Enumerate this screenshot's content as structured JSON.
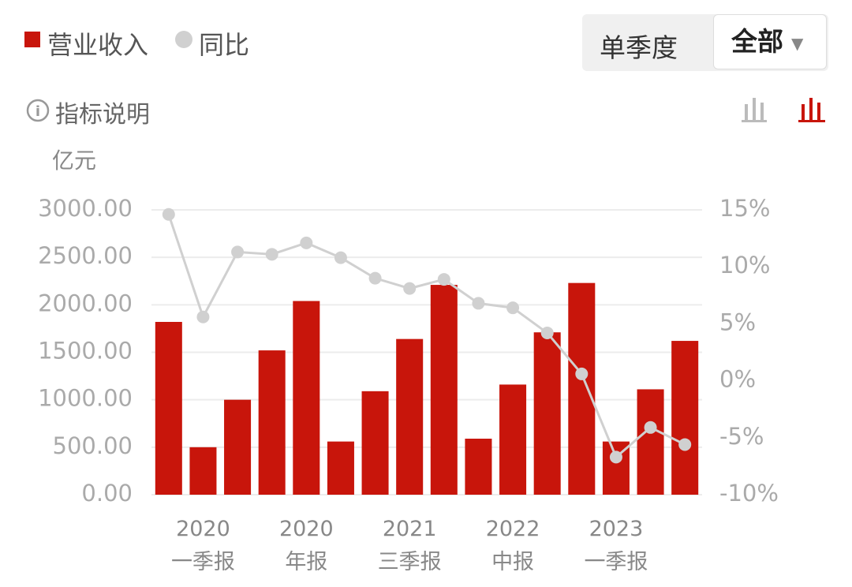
{
  "controls": {
    "period_tabs": [
      "单季度",
      "全部"
    ],
    "info": "指标说明"
  },
  "chart_data": {
    "type": "bar",
    "ylabel": "亿元",
    "categories": [
      null,
      "2020\n一季报",
      null,
      null,
      "2020\n年报",
      null,
      null,
      "2021\n三季报",
      null,
      null,
      "2022\n中报",
      null,
      null,
      "2023\n一季报",
      null,
      null
    ],
    "series": [
      {
        "name": "营业收入",
        "color": "#c8150b",
        "type": "bar",
        "values": [
          1820,
          500,
          1000,
          1520,
          2040,
          560,
          1090,
          1640,
          2210,
          590,
          1160,
          1710,
          2230,
          560,
          1110,
          1620
        ]
      },
      {
        "name": "同比",
        "color": "#d0d0d0",
        "type": "line",
        "axis": "y2",
        "values": [
          14.6,
          5.6,
          11.3,
          11.1,
          12.1,
          10.8,
          9.0,
          8.1,
          8.9,
          6.8,
          6.4,
          4.2,
          0.6,
          -6.7,
          -4.1,
          -5.6
        ]
      }
    ],
    "ylim": [
      0,
      3000
    ],
    "yticks": [
      {
        "value": 0,
        "label": "0.00"
      },
      {
        "value": 500,
        "label": "500.00"
      },
      {
        "value": 1000,
        "label": "1000.00"
      },
      {
        "value": 1500,
        "label": "1500.00"
      },
      {
        "value": 2000,
        "label": "2000.00"
      },
      {
        "value": 2500,
        "label": "2500.00"
      },
      {
        "value": 3000,
        "label": "3000.00"
      }
    ],
    "y2lim": [
      -10,
      15
    ],
    "y2ticks": [
      {
        "value": -10,
        "label": "-10%"
      },
      {
        "value": -5,
        "label": "-5%"
      },
      {
        "value": 0,
        "label": "0%"
      },
      {
        "value": 5,
        "label": "5%"
      },
      {
        "value": 10,
        "label": "10%"
      },
      {
        "value": 15,
        "label": "15%"
      }
    ],
    "grid": true
  }
}
